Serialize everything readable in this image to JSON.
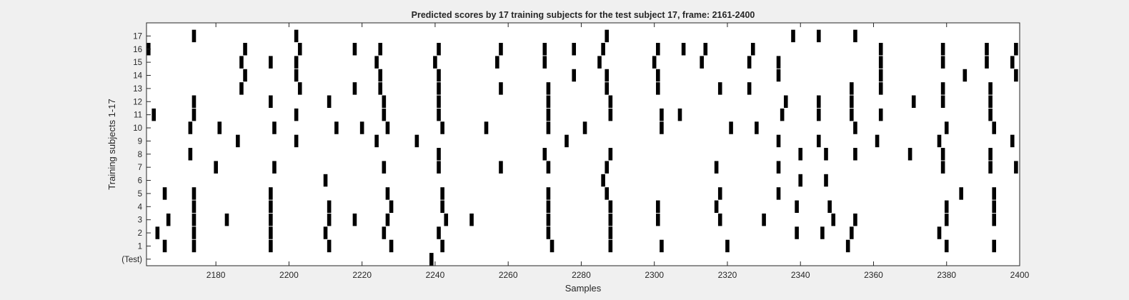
{
  "chart_data": {
    "type": "raster",
    "title": "Predicted scores by 17 training subjects for the test subject 17, frame: 2161-2400",
    "xlabel": "Samples",
    "ylabel": "Training subjects 1-17",
    "xlim": [
      2161,
      2400
    ],
    "x_ticks": [
      2180,
      2200,
      2220,
      2240,
      2260,
      2280,
      2300,
      2320,
      2340,
      2360,
      2380,
      2400
    ],
    "y_tick_labels": [
      "(Test)",
      "1",
      "2",
      "3",
      "4",
      "5",
      "6",
      "7",
      "8",
      "9",
      "10",
      "11",
      "12",
      "13",
      "14",
      "15",
      "16",
      "17"
    ],
    "grid": false,
    "mark_color": "#000000",
    "rows": [
      {
        "label": "(Test)",
        "events": [
          2239
        ]
      },
      {
        "label": "1",
        "events": [
          2166,
          2174,
          2195,
          2211,
          2228,
          2242,
          2272,
          2288,
          2302,
          2320,
          2353,
          2380,
          2393
        ]
      },
      {
        "label": "2",
        "events": [
          2164,
          2174,
          2195,
          2210,
          2226,
          2241,
          2271,
          2288,
          2339,
          2346,
          2354,
          2378
        ]
      },
      {
        "label": "3",
        "events": [
          2167,
          2174,
          2183,
          2195,
          2211,
          2218,
          2227,
          2243,
          2250,
          2271,
          2288,
          2301,
          2318,
          2330,
          2349,
          2355,
          2380,
          2393
        ]
      },
      {
        "label": "4",
        "events": [
          2174,
          2195,
          2211,
          2228,
          2242,
          2271,
          2288,
          2301,
          2317,
          2339,
          2348,
          2380,
          2393
        ]
      },
      {
        "label": "5",
        "events": [
          2166,
          2174,
          2195,
          2227,
          2242,
          2271,
          2287,
          2318,
          2334,
          2384,
          2393
        ]
      },
      {
        "label": "6",
        "events": [
          2210,
          2286,
          2340,
          2347
        ]
      },
      {
        "label": "7",
        "events": [
          2180,
          2196,
          2226,
          2241,
          2258,
          2271,
          2287,
          2317,
          2334,
          2379,
          2392,
          2399
        ]
      },
      {
        "label": "8",
        "events": [
          2173,
          2241,
          2270,
          2288,
          2340,
          2347,
          2355,
          2370,
          2379,
          2392
        ]
      },
      {
        "label": "9",
        "events": [
          2186,
          2202,
          2224,
          2235,
          2276,
          2334,
          2345,
          2361,
          2378,
          2398
        ]
      },
      {
        "label": "10",
        "events": [
          2173,
          2181,
          2196,
          2213,
          2220,
          2227,
          2242,
          2254,
          2271,
          2281,
          2302,
          2321,
          2328,
          2355,
          2380,
          2393
        ]
      },
      {
        "label": "11",
        "events": [
          2163,
          2174,
          2202,
          2226,
          2241,
          2271,
          2288,
          2302,
          2307,
          2335,
          2345,
          2354,
          2362,
          2392
        ]
      },
      {
        "label": "12",
        "events": [
          2174,
          2195,
          2211,
          2226,
          2241,
          2271,
          2288,
          2336,
          2345,
          2354,
          2371,
          2379,
          2392
        ]
      },
      {
        "label": "13",
        "events": [
          2187,
          2203,
          2218,
          2225,
          2241,
          2258,
          2271,
          2287,
          2301,
          2318,
          2326,
          2354,
          2362,
          2379,
          2392
        ]
      },
      {
        "label": "14",
        "events": [
          2188,
          2202,
          2225,
          2241,
          2278,
          2287,
          2301,
          2334,
          2362,
          2385,
          2399
        ]
      },
      {
        "label": "15",
        "events": [
          2187,
          2195,
          2202,
          2224,
          2240,
          2257,
          2270,
          2285,
          2300,
          2313,
          2326,
          2334,
          2362,
          2379,
          2391,
          2398
        ]
      },
      {
        "label": "16",
        "events": [
          2161,
          2188,
          2203,
          2218,
          2225,
          2241,
          2258,
          2270,
          2278,
          2286,
          2301,
          2308,
          2314,
          2327,
          2362,
          2379,
          2391,
          2399
        ]
      },
      {
        "label": "17",
        "events": [
          2174,
          2202,
          2287,
          2338,
          2345,
          2355
        ]
      }
    ]
  }
}
